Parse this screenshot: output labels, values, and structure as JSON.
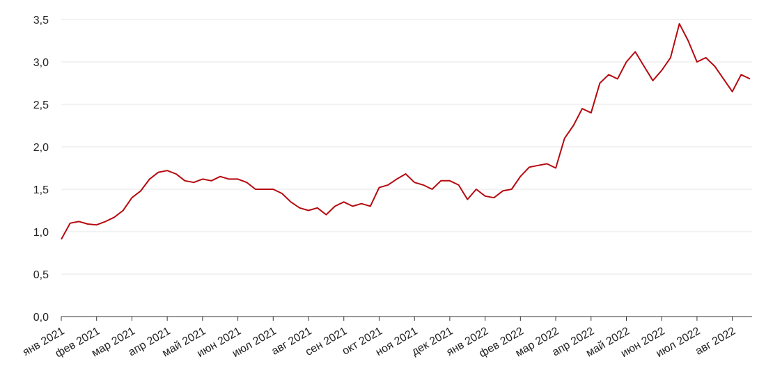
{
  "chart_data": {
    "type": "line",
    "color": "#b5090f",
    "values": [
      0.91,
      1.1,
      1.12,
      1.09,
      1.08,
      1.12,
      1.17,
      1.25,
      1.4,
      1.48,
      1.62,
      1.7,
      1.72,
      1.68,
      1.6,
      1.58,
      1.62,
      1.6,
      1.65,
      1.62,
      1.62,
      1.58,
      1.5,
      1.5,
      1.5,
      1.45,
      1.35,
      1.28,
      1.25,
      1.28,
      1.2,
      1.3,
      1.35,
      1.3,
      1.33,
      1.3,
      1.52,
      1.55,
      1.62,
      1.68,
      1.58,
      1.55,
      1.5,
      1.6,
      1.6,
      1.55,
      1.38,
      1.5,
      1.42,
      1.4,
      1.48,
      1.5,
      1.65,
      1.76,
      1.78,
      1.8,
      1.75,
      2.1,
      2.25,
      2.45,
      2.4,
      2.75,
      2.85,
      2.8,
      3.0,
      3.12,
      2.95,
      2.78,
      2.9,
      3.05,
      3.45,
      3.25,
      3.0,
      3.05,
      2.95,
      2.8,
      2.65,
      2.85,
      2.8
    ],
    "xlim": [
      0,
      78
    ],
    "xticks": [
      {
        "value": 0,
        "label": "янв 2021"
      },
      {
        "value": 4,
        "label": "фев 2021"
      },
      {
        "value": 8,
        "label": "мар 2021"
      },
      {
        "value": 12,
        "label": "апр 2021"
      },
      {
        "value": 16,
        "label": "май 2021"
      },
      {
        "value": 20,
        "label": "июн 2021"
      },
      {
        "value": 24,
        "label": "июл 2021"
      },
      {
        "value": 28,
        "label": "авг 2021"
      },
      {
        "value": 32,
        "label": "сен 2021"
      },
      {
        "value": 36,
        "label": "окт 2021"
      },
      {
        "value": 40,
        "label": "ноя 2021"
      },
      {
        "value": 44,
        "label": "дек 2021"
      },
      {
        "value": 48,
        "label": "янв 2022"
      },
      {
        "value": 52,
        "label": "фев 2022"
      },
      {
        "value": 56,
        "label": "мар 2022"
      },
      {
        "value": 60,
        "label": "апр 2022"
      },
      {
        "value": 64,
        "label": "май 2022"
      },
      {
        "value": 68,
        "label": "июн 2022"
      },
      {
        "value": 72,
        "label": "июл 2022"
      },
      {
        "value": 76,
        "label": "авг 2022"
      }
    ],
    "ylim": [
      0,
      3.5
    ],
    "yticks": [
      {
        "value": 0,
        "label": "0,0"
      },
      {
        "value": 0.5,
        "label": "0,5"
      },
      {
        "value": 1,
        "label": "1,0"
      },
      {
        "value": 1.5,
        "label": "1,5"
      },
      {
        "value": 2,
        "label": "2,0"
      },
      {
        "value": 2.5,
        "label": "2,5"
      },
      {
        "value": 3,
        "label": "3,0"
      },
      {
        "value": 3.5,
        "label": "3,5"
      }
    ],
    "grid": true
  }
}
